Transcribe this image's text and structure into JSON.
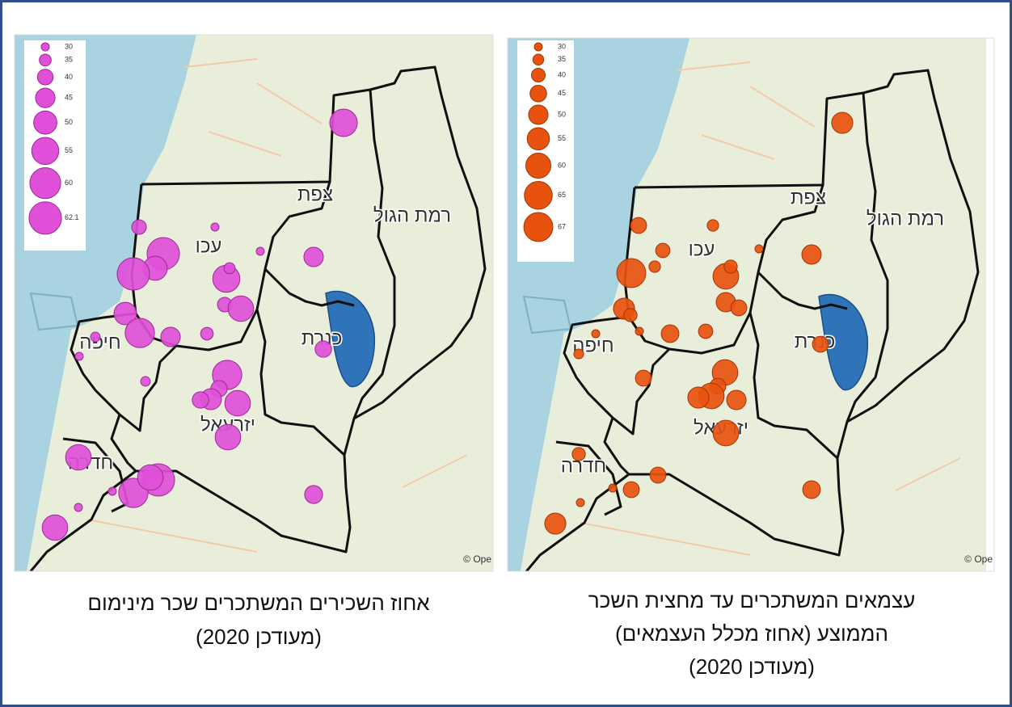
{
  "panels": [
    {
      "caption_lines": [
        "אחוז השכירים המשתכרים שכר מינימום",
        "(מעודכן 2020)"
      ],
      "color": "#e04fd8",
      "legend": [
        30,
        35,
        40,
        45,
        50,
        55,
        60,
        62.1
      ],
      "regions": [
        "צפת",
        "רמת הגול",
        "עכו",
        "כנרת",
        "חיפה",
        "יזרעאל",
        "חדרה"
      ],
      "attribution": "© Ope",
      "bubbles": [
        55.5,
        38.5,
        30,
        62,
        51,
        62,
        30,
        45,
        55,
        34,
        38.5,
        53,
        49,
        58,
        45,
        36,
        32,
        30,
        41,
        32,
        58,
        41,
        47,
        41,
        53,
        53,
        53,
        62,
        58,
        53,
        30,
        43,
        30,
        53
      ]
    },
    {
      "caption_lines": [
        "עצמאים המשתכרים עד מחצית השכר",
        "הממוצע (אחוז מכלל העצמאים)",
        "(מעודכן 2020)"
      ],
      "color": "#e8520f",
      "legend": [
        30,
        35,
        40,
        45,
        50,
        55,
        60,
        65,
        67
      ],
      "regions": [
        "צפת",
        "רמת הגול",
        "עכו",
        "כנרת",
        "חיפה",
        "יזרעאל",
        "חדרה"
      ],
      "attribution": "© Ope",
      "bubbles": [
        53,
        44,
        36,
        41,
        36,
        30,
        50,
        67,
        61,
        39,
        50,
        44,
        53,
        39,
        30,
        30,
        47,
        41,
        33,
        44,
        44,
        61,
        44,
        61,
        53,
        50,
        61,
        39,
        44,
        44,
        30,
        30,
        47,
        53
      ]
    }
  ]
}
